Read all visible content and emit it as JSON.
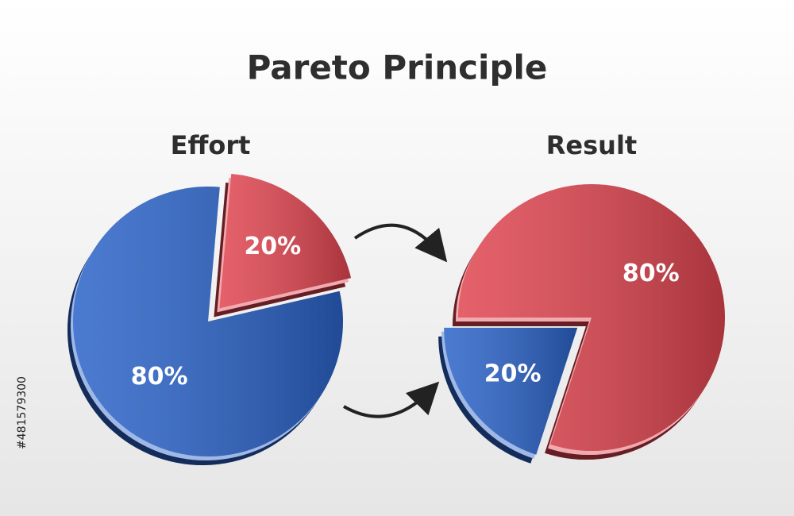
{
  "title": "Pareto Principle",
  "stock_id": "#481579300",
  "chart_data": [
    {
      "type": "pie",
      "title": "Effort",
      "values": [
        80,
        20
      ],
      "value_labels": [
        "80%",
        "20%"
      ],
      "colors": [
        "#2b63c8",
        "#e04550"
      ]
    },
    {
      "type": "pie",
      "title": "Result",
      "values": [
        80,
        20
      ],
      "value_labels": [
        "80%",
        "20%"
      ],
      "colors": [
        "#e04550",
        "#2b63c8"
      ]
    }
  ]
}
